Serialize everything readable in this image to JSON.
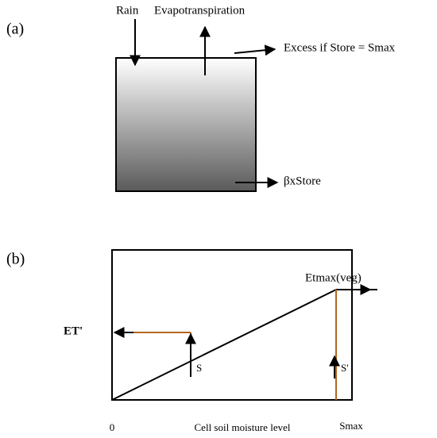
{
  "panel_a": {
    "label": "(a)",
    "rain": "Rain",
    "evapotranspiration": "Evapotranspiration",
    "excess": "Excess if Store = Smax",
    "drainage": "βxStore"
  },
  "panel_b": {
    "label": "(b)",
    "etmax": "Etmax(veg)",
    "et_prime": "ET'",
    "s": "S",
    "s_prime": "S'",
    "x_origin": "0",
    "x_axis_label": "Cell soil moisture level",
    "x_max": "Smax"
  }
}
